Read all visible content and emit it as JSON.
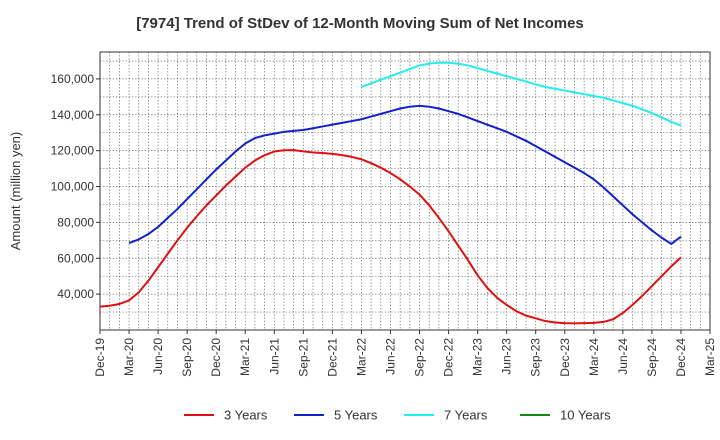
{
  "chart_data": {
    "type": "line",
    "title": "[7974]  Trend of StDev of 12-Month Moving Sum of Net Incomes",
    "xlabel": "",
    "ylabel": "Amount (million yen)",
    "ylim": [
      20000,
      175000
    ],
    "yticks": [
      40000,
      60000,
      80000,
      100000,
      120000,
      140000,
      160000
    ],
    "ytick_labels": [
      "40,000",
      "60,000",
      "80,000",
      "100,000",
      "120,000",
      "140,000",
      "160,000"
    ],
    "xlim": [
      "2019-12",
      "2025-03"
    ],
    "xtick_labels": [
      "Dec-19",
      "Mar-20",
      "Jun-20",
      "Sep-20",
      "Dec-20",
      "Mar-21",
      "Jun-21",
      "Sep-21",
      "Dec-21",
      "Mar-22",
      "Jun-22",
      "Sep-22",
      "Dec-22",
      "Mar-23",
      "Jun-23",
      "Sep-23",
      "Dec-23",
      "Mar-24",
      "Jun-24",
      "Sep-24",
      "Dec-24",
      "Mar-25"
    ],
    "grid": true,
    "legend_position": "bottom",
    "series": [
      {
        "name": "3 Years",
        "color": "#dd1111",
        "x": [
          "2019-12",
          "2020-01",
          "2020-02",
          "2020-03",
          "2020-04",
          "2020-05",
          "2020-06",
          "2020-07",
          "2020-08",
          "2020-09",
          "2020-10",
          "2020-11",
          "2020-12",
          "2021-01",
          "2021-02",
          "2021-03",
          "2021-04",
          "2021-05",
          "2021-06",
          "2021-07",
          "2021-08",
          "2021-09",
          "2021-10",
          "2021-11",
          "2021-12",
          "2022-01",
          "2022-02",
          "2022-03",
          "2022-04",
          "2022-05",
          "2022-06",
          "2022-07",
          "2022-08",
          "2022-09",
          "2022-10",
          "2022-11",
          "2022-12",
          "2023-01",
          "2023-02",
          "2023-03",
          "2023-04",
          "2023-05",
          "2023-06",
          "2023-07",
          "2023-08",
          "2023-09",
          "2023-10",
          "2023-11",
          "2023-12",
          "2024-01",
          "2024-02",
          "2024-03",
          "2024-04",
          "2024-05",
          "2024-06",
          "2024-07",
          "2024-08",
          "2024-09",
          "2024-10",
          "2024-11",
          "2024-12"
        ],
        "y": [
          33000,
          33500,
          34500,
          36500,
          41000,
          47500,
          55000,
          62500,
          70000,
          77000,
          83500,
          89500,
          95000,
          100500,
          105500,
          110500,
          114500,
          117500,
          119500,
          120200,
          120300,
          119600,
          119000,
          118700,
          118200,
          117500,
          116500,
          115200,
          113000,
          110500,
          107500,
          104000,
          100000,
          95500,
          89500,
          82500,
          75000,
          67000,
          59000,
          50500,
          43500,
          38000,
          34000,
          30500,
          28000,
          26500,
          25000,
          24200,
          23800,
          23700,
          23800,
          24000,
          24500,
          26000,
          29500,
          34000,
          39000,
          44500,
          50000,
          55500,
          60500
        ]
      },
      {
        "name": "5 Years",
        "color": "#1122cc",
        "x": [
          "2020-03",
          "2020-04",
          "2020-05",
          "2020-06",
          "2020-07",
          "2020-08",
          "2020-09",
          "2020-10",
          "2020-11",
          "2020-12",
          "2021-01",
          "2021-02",
          "2021-03",
          "2021-04",
          "2021-05",
          "2021-06",
          "2021-07",
          "2021-08",
          "2021-09",
          "2021-10",
          "2021-11",
          "2021-12",
          "2022-01",
          "2022-02",
          "2022-03",
          "2022-04",
          "2022-05",
          "2022-06",
          "2022-07",
          "2022-08",
          "2022-09",
          "2022-10",
          "2022-11",
          "2022-12",
          "2023-01",
          "2023-02",
          "2023-03",
          "2023-04",
          "2023-05",
          "2023-06",
          "2023-07",
          "2023-08",
          "2023-09",
          "2023-10",
          "2023-11",
          "2023-12",
          "2024-01",
          "2024-02",
          "2024-03",
          "2024-04",
          "2024-05",
          "2024-06",
          "2024-07",
          "2024-08",
          "2024-09",
          "2024-10",
          "2024-11",
          "2024-12"
        ],
        "y": [
          68500,
          70500,
          73500,
          77500,
          82500,
          87500,
          93000,
          98500,
          104000,
          109500,
          114500,
          119500,
          124000,
          127000,
          128500,
          129500,
          130500,
          131000,
          131500,
          132500,
          133500,
          134500,
          135500,
          136500,
          137500,
          139000,
          140500,
          142000,
          143500,
          144500,
          145000,
          144500,
          143500,
          142000,
          140500,
          138500,
          136500,
          134500,
          132500,
          130500,
          128000,
          125500,
          122500,
          119500,
          116500,
          113500,
          110500,
          107500,
          104000,
          99500,
          94500,
          89500,
          84500,
          80000,
          75500,
          71500,
          68000,
          72000
        ]
      },
      {
        "name": "7 Years",
        "color": "#22eeee",
        "x": [
          "2022-03",
          "2022-04",
          "2022-05",
          "2022-06",
          "2022-07",
          "2022-08",
          "2022-09",
          "2022-10",
          "2022-11",
          "2022-12",
          "2023-01",
          "2023-02",
          "2023-03",
          "2023-04",
          "2023-05",
          "2023-06",
          "2023-07",
          "2023-08",
          "2023-09",
          "2023-10",
          "2023-11",
          "2023-12",
          "2024-01",
          "2024-02",
          "2024-03",
          "2024-04",
          "2024-05",
          "2024-06",
          "2024-07",
          "2024-08",
          "2024-09",
          "2024-10",
          "2024-11",
          "2024-12"
        ],
        "y": [
          155500,
          157500,
          159500,
          161500,
          163500,
          165500,
          167500,
          168500,
          169000,
          169000,
          168500,
          167500,
          166000,
          164500,
          163000,
          161500,
          160000,
          158500,
          157000,
          155500,
          154500,
          153500,
          152500,
          151500,
          150500,
          149500,
          148000,
          146500,
          145000,
          143000,
          141000,
          138500,
          136000,
          134000
        ]
      },
      {
        "name": "10 Years",
        "color": "#118811",
        "x": [],
        "y": []
      }
    ]
  }
}
